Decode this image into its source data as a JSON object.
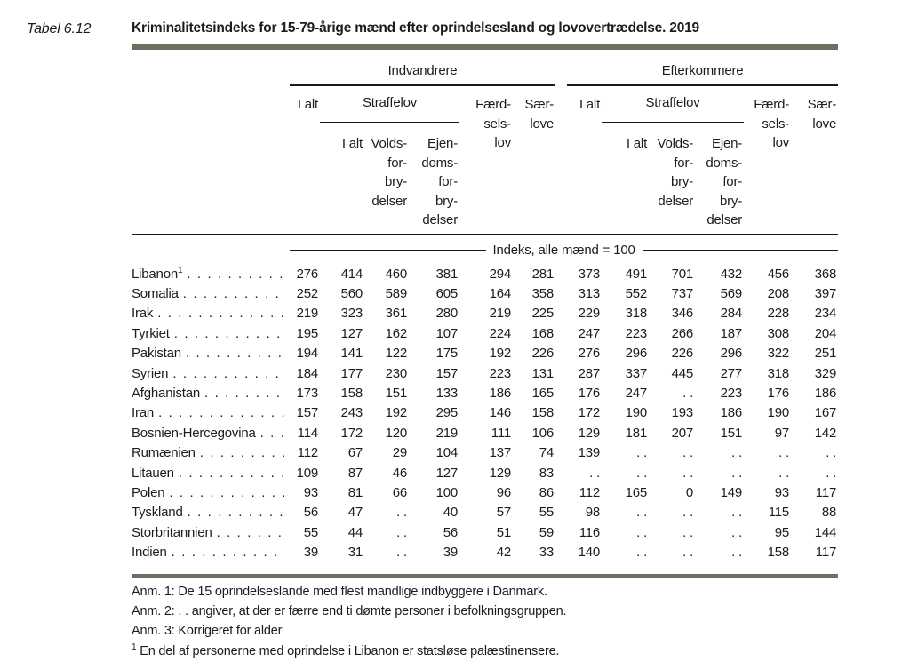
{
  "page": {
    "table_label": "Tabel 6.12",
    "title": "Kriminalitetsindeks for 15-79-årige mænd efter oprindelsesland og lovovertrædelse. 2019"
  },
  "table": {
    "group_headers": [
      {
        "label": "Indvandrere"
      },
      {
        "label": "Efterkommere"
      }
    ],
    "column_headers": {
      "i_alt": "I alt",
      "straffelov": "Straffelov",
      "straffelov_i_alt": "I alt",
      "voldsforbrydelser": "Volds-\nfor-\nbry-\ndelser",
      "ejendomsforbrydelser": "Ejen-\ndoms-\nfor-\nbry-\ndelser",
      "faerdselslov": "Færd-\nsels-\nlov",
      "saerlove": "Sær-\nlove"
    },
    "unit_line": "Indeks, alle mænd = 100",
    "missing_marker": ". .",
    "rows": [
      {
        "label": "Libanon",
        "sup": "1",
        "values": [
          "276",
          "414",
          "460",
          "381",
          "294",
          "281",
          "373",
          "491",
          "701",
          "432",
          "456",
          "368"
        ]
      },
      {
        "label": "Somalia",
        "values": [
          "252",
          "560",
          "589",
          "605",
          "164",
          "358",
          "313",
          "552",
          "737",
          "569",
          "208",
          "397"
        ]
      },
      {
        "label": "Irak",
        "values": [
          "219",
          "323",
          "361",
          "280",
          "219",
          "225",
          "229",
          "318",
          "346",
          "284",
          "228",
          "234"
        ]
      },
      {
        "label": "Tyrkiet",
        "values": [
          "195",
          "127",
          "162",
          "107",
          "224",
          "168",
          "247",
          "223",
          "266",
          "187",
          "308",
          "204"
        ]
      },
      {
        "label": "Pakistan",
        "values": [
          "194",
          "141",
          "122",
          "175",
          "192",
          "226",
          "276",
          "296",
          "226",
          "296",
          "322",
          "251"
        ]
      },
      {
        "label": "Syrien",
        "values": [
          "184",
          "177",
          "230",
          "157",
          "223",
          "131",
          "287",
          "337",
          "445",
          "277",
          "318",
          "329"
        ]
      },
      {
        "label": "Afghanistan",
        "values": [
          "173",
          "158",
          "151",
          "133",
          "186",
          "165",
          "176",
          "247",
          ". .",
          "223",
          "176",
          "186"
        ]
      },
      {
        "label": "Iran",
        "values": [
          "157",
          "243",
          "192",
          "295",
          "146",
          "158",
          "172",
          "190",
          "193",
          "186",
          "190",
          "167"
        ]
      },
      {
        "label": "Bosnien-Hercegovina",
        "values": [
          "114",
          "172",
          "120",
          "219",
          "111",
          "106",
          "129",
          "181",
          "207",
          "151",
          "97",
          "142"
        ]
      },
      {
        "label": "Rumænien",
        "values": [
          "112",
          "67",
          "29",
          "104",
          "137",
          "74",
          "139",
          ". .",
          ". .",
          ". .",
          ". .",
          ". ."
        ]
      },
      {
        "label": "Litauen",
        "values": [
          "109",
          "87",
          "46",
          "127",
          "129",
          "83",
          ". .",
          ". .",
          ". .",
          ". .",
          ". .",
          ". ."
        ]
      },
      {
        "label": "Polen",
        "values": [
          "93",
          "81",
          "66",
          "100",
          "96",
          "86",
          "112",
          "165",
          "0",
          "149",
          "93",
          "117"
        ]
      },
      {
        "label": "Tyskland",
        "values": [
          "56",
          "47",
          ". .",
          "40",
          "57",
          "55",
          "98",
          ". .",
          ". .",
          ". .",
          "115",
          "88"
        ]
      },
      {
        "label": "Storbritannien",
        "values": [
          "55",
          "44",
          ". .",
          "56",
          "51",
          "59",
          "116",
          ". .",
          ". .",
          ". .",
          "95",
          "144"
        ]
      },
      {
        "label": "Indien",
        "values": [
          "39",
          "31",
          ". .",
          "39",
          "42",
          "33",
          "140",
          ". .",
          ". .",
          ". .",
          "158",
          "117"
        ]
      }
    ]
  },
  "footnotes": [
    {
      "text": "Anm. 1: De 15 oprindelseslande med flest mandlige indbyggere i Danmark."
    },
    {
      "text": "Anm. 2: . . angiver, at der er færre end ti dømte personer i befolkningsgruppen."
    },
    {
      "text": "Anm. 3: Korrigeret for alder"
    },
    {
      "sup": "1",
      "text": "En del af personerne med oprindelse i Libanon er statsløse palæstinensere."
    }
  ]
}
